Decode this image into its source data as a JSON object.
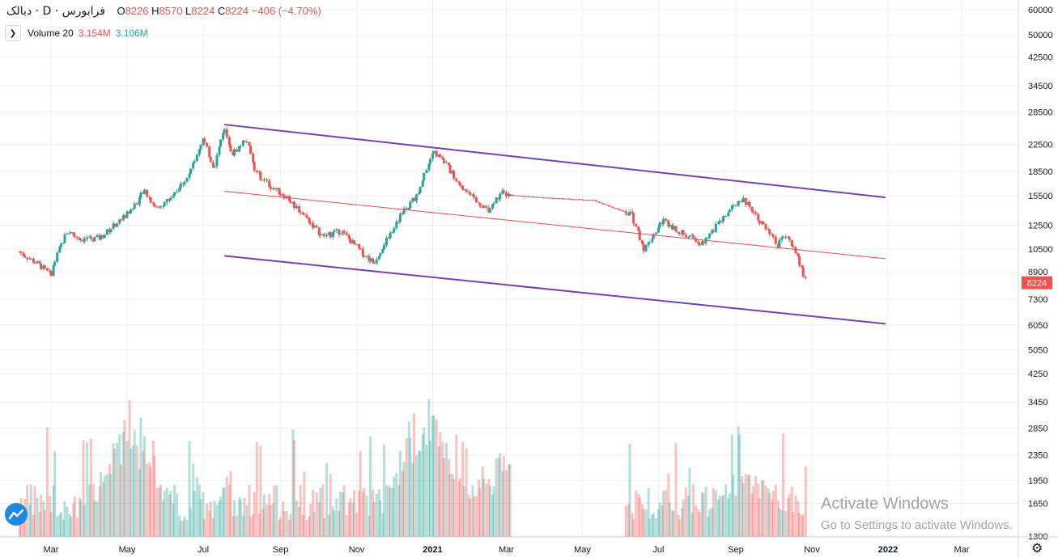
{
  "header": {
    "symbol": "دبالک · D · فرابورس",
    "open_label": "O",
    "open": "8226",
    "high_label": "H",
    "high": "8570",
    "low_label": "L",
    "low": "8224",
    "close_label": "C",
    "close": "8224",
    "change": "−406 (−4.70%)"
  },
  "volume_legend": {
    "label": "Volume 20",
    "value_1": "3.154M",
    "value_2": "3.106M"
  },
  "last_price_tag": "8224",
  "watermark": {
    "title": "Activate Windows",
    "subtitle": "Go to Settings to activate Windows."
  },
  "icons": {
    "logo": "tradingview-logo-icon",
    "settings": "gear-icon",
    "toggle": "collapse-arrow-icon"
  },
  "colors": {
    "up": "#26a69a",
    "down": "#ef5350",
    "channel": "#7b3fb0",
    "midline": "#f04a4a",
    "grid": "#eef0f3"
  },
  "chart_data": {
    "type": "candlestick",
    "price_scale": "log",
    "price_ticks": [
      60000,
      50000,
      42500,
      34500,
      28500,
      22500,
      18500,
      15500,
      12500,
      10500,
      8900,
      7300,
      6050,
      5050,
      4250,
      3450,
      2850,
      2350,
      1950,
      1650,
      1300
    ],
    "x_tick_labels": [
      "Mar",
      "May",
      "Jul",
      "Sep",
      "Nov",
      "2021",
      "Mar",
      "May",
      "Jul",
      "Sep",
      "Nov",
      "2022",
      "Mar"
    ],
    "x_range": [
      "2020-02",
      "2022-04"
    ],
    "channel": {
      "upper_start": [
        "2020-07-18",
        26000
      ],
      "upper_end": [
        "2021-12-30",
        15300
      ],
      "middle_start": [
        "2020-07-18",
        16000
      ],
      "middle_end": [
        "2021-12-30",
        9800
      ],
      "lower_start": [
        "2020-07-18",
        10000
      ],
      "lower_end": [
        "2021-12-30",
        6100
      ]
    },
    "price_path": [
      [
        "2020-02-05",
        10300
      ],
      [
        "2020-02-22",
        9300
      ],
      [
        "2020-03-01",
        8700
      ],
      [
        "2020-03-08",
        10500
      ],
      [
        "2020-03-15",
        12000
      ],
      [
        "2020-03-25",
        11300
      ],
      [
        "2020-04-10",
        11400
      ],
      [
        "2020-04-20",
        12400
      ],
      [
        "2020-05-05",
        14000
      ],
      [
        "2020-05-15",
        16000
      ],
      [
        "2020-05-25",
        14200
      ],
      [
        "2020-06-05",
        15200
      ],
      [
        "2020-06-20",
        18000
      ],
      [
        "2020-07-01",
        23500
      ],
      [
        "2020-07-10",
        19000
      ],
      [
        "2020-07-18",
        25500
      ],
      [
        "2020-07-25",
        21000
      ],
      [
        "2020-08-05",
        23500
      ],
      [
        "2020-08-12",
        18500
      ],
      [
        "2020-08-25",
        16500
      ],
      [
        "2020-09-05",
        15500
      ],
      [
        "2020-09-20",
        13500
      ],
      [
        "2020-10-05",
        11500
      ],
      [
        "2020-10-20",
        12000
      ],
      [
        "2020-11-05",
        10300
      ],
      [
        "2020-11-15",
        9500
      ],
      [
        "2020-11-25",
        11200
      ],
      [
        "2020-12-10",
        14000
      ],
      [
        "2020-12-20",
        15500
      ],
      [
        "2021-01-01",
        21500
      ],
      [
        "2021-01-10",
        20000
      ],
      [
        "2021-01-25",
        16500
      ],
      [
        "2021-02-05",
        15000
      ],
      [
        "2021-02-15",
        14000
      ],
      [
        "2021-02-25",
        15800
      ],
      [
        "2021-03-10",
        15500
      ],
      [
        "2021-04-10",
        15200
      ],
      [
        "2021-05-10",
        15000
      ],
      [
        "2021-06-10",
        13500
      ],
      [
        "2021-06-20",
        10500
      ],
      [
        "2021-07-05",
        13000
      ],
      [
        "2021-07-20",
        11800
      ],
      [
        "2021-08-05",
        11000
      ],
      [
        "2021-08-20",
        12800
      ],
      [
        "2021-09-05",
        15200
      ],
      [
        "2021-09-12",
        14500
      ],
      [
        "2021-09-25",
        12200
      ],
      [
        "2021-10-05",
        10800
      ],
      [
        "2021-10-12",
        11800
      ],
      [
        "2021-10-20",
        10000
      ],
      [
        "2021-10-28",
        8224
      ]
    ],
    "volume_ylim": [
      1300,
      4500
    ],
    "volume_peaks": [
      [
        "2020-05-05",
        3450
      ],
      [
        "2020-12-25",
        3600
      ],
      [
        "2021-01-05",
        2900
      ],
      [
        "2021-02-25",
        2400
      ],
      [
        "2021-09-10",
        2250
      ]
    ]
  }
}
